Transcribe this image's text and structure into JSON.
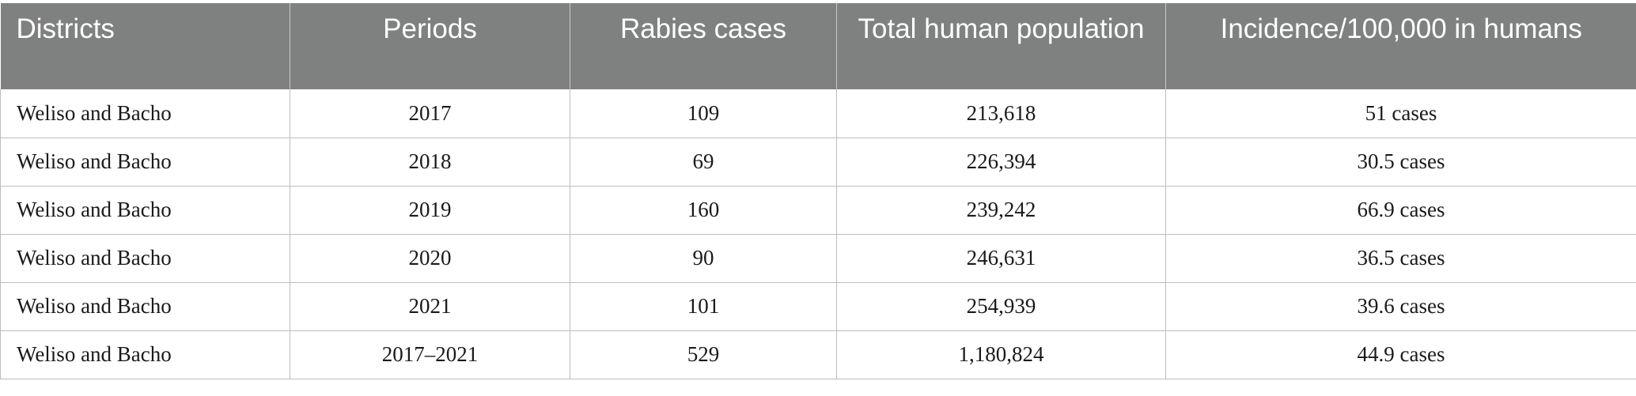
{
  "table": {
    "headers": [
      "Districts",
      "Periods",
      "Rabies cases",
      "Total human population",
      "Incidence/100,000 in humans"
    ],
    "rows": [
      [
        "Weliso and Bacho",
        "2017",
        "109",
        "213,618",
        "51 cases"
      ],
      [
        "Weliso and Bacho",
        "2018",
        "69",
        "226,394",
        "30.5 cases"
      ],
      [
        "Weliso and Bacho",
        "2019",
        "160",
        "239,242",
        "66.9 cases"
      ],
      [
        "Weliso and Bacho",
        "2020",
        "90",
        "246,631",
        "36.5 cases"
      ],
      [
        "Weliso and Bacho",
        "2021",
        "101",
        "254,939",
        "39.6 cases"
      ],
      [
        "Weliso and Bacho",
        "2017–2021",
        "529",
        "1,180,824",
        "44.9 cases"
      ]
    ]
  },
  "colors": {
    "header_bg": "#7f8180",
    "header_text": "#ffffff",
    "grid": "#bdbdbd"
  }
}
